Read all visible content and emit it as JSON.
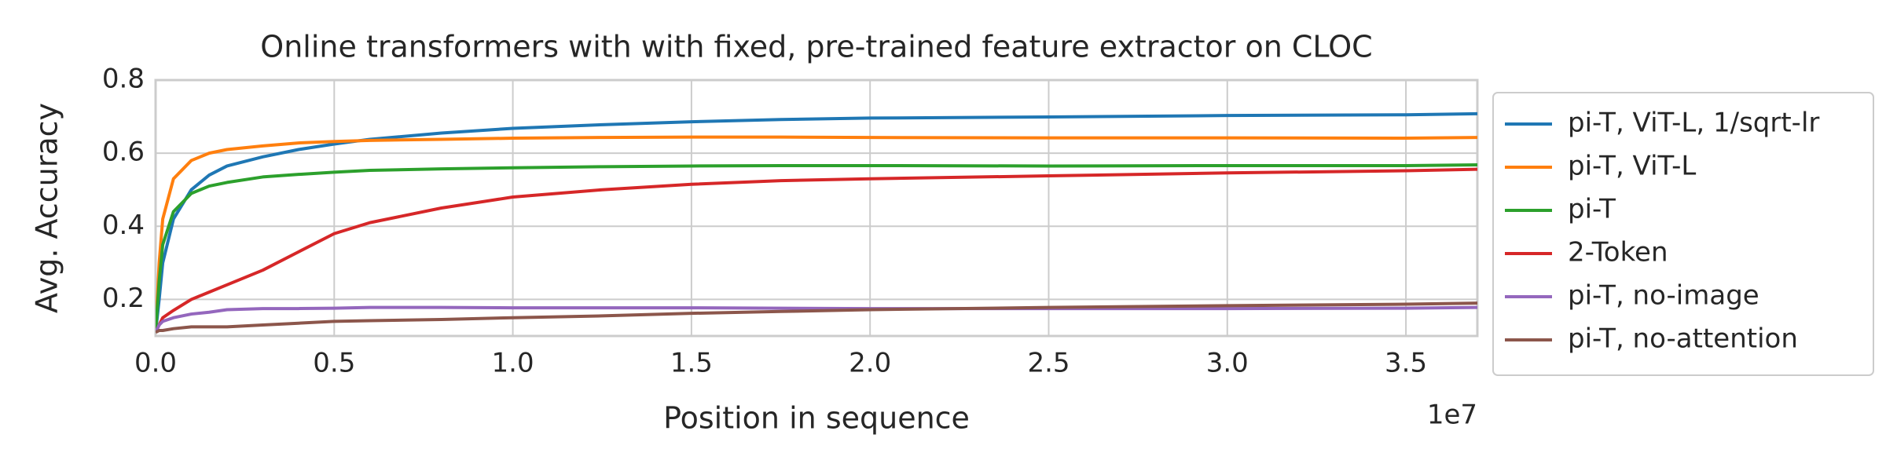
{
  "chart_data": {
    "type": "line",
    "title": "Online transformers with with fixed, pre-trained feature extractor on CLOC",
    "x_label": "Position in sequence",
    "y_label": "Avg. Accuracy",
    "x_offset_label": "1e7",
    "x": [
      0,
      100000,
      200000,
      500000,
      1000000,
      1500000,
      2000000,
      3000000,
      4000000,
      5000000,
      6000000,
      8000000,
      10000000,
      12500000,
      15000000,
      17500000,
      20000000,
      25000000,
      30000000,
      35000000,
      37000000
    ],
    "series": [
      {
        "name": "pi-T, ViT-L, 1/sqrt-lr",
        "color": "#1f77b4",
        "values": [
          0.11,
          0.2,
          0.3,
          0.42,
          0.5,
          0.54,
          0.565,
          0.59,
          0.61,
          0.625,
          0.638,
          0.655,
          0.668,
          0.678,
          0.686,
          0.692,
          0.696,
          0.699,
          0.703,
          0.705,
          0.708
        ]
      },
      {
        "name": "pi-T, ViT-L",
        "color": "#ff7f0e",
        "values": [
          0.11,
          0.3,
          0.42,
          0.53,
          0.58,
          0.6,
          0.61,
          0.62,
          0.628,
          0.632,
          0.635,
          0.638,
          0.641,
          0.643,
          0.644,
          0.644,
          0.643,
          0.642,
          0.642,
          0.641,
          0.643
        ]
      },
      {
        "name": "pi-T",
        "color": "#2ca02c",
        "values": [
          0.11,
          0.25,
          0.35,
          0.44,
          0.49,
          0.51,
          0.52,
          0.535,
          0.542,
          0.548,
          0.553,
          0.557,
          0.56,
          0.563,
          0.565,
          0.566,
          0.566,
          0.565,
          0.566,
          0.566,
          0.568
        ]
      },
      {
        "name": "2-Token",
        "color": "#d62728",
        "values": [
          0.11,
          0.13,
          0.15,
          0.17,
          0.2,
          0.22,
          0.24,
          0.28,
          0.33,
          0.38,
          0.41,
          0.45,
          0.48,
          0.5,
          0.515,
          0.525,
          0.53,
          0.538,
          0.546,
          0.552,
          0.556
        ]
      },
      {
        "name": "pi-T, no-image",
        "color": "#9467bd",
        "values": [
          0.11,
          0.13,
          0.14,
          0.15,
          0.16,
          0.165,
          0.172,
          0.175,
          0.175,
          0.176,
          0.178,
          0.178,
          0.177,
          0.177,
          0.177,
          0.176,
          0.175,
          0.175,
          0.175,
          0.176,
          0.178
        ]
      },
      {
        "name": "pi-T, no-attention",
        "color": "#8c564b",
        "values": [
          0.11,
          0.115,
          0.115,
          0.12,
          0.125,
          0.125,
          0.125,
          0.13,
          0.135,
          0.14,
          0.142,
          0.145,
          0.15,
          0.155,
          0.162,
          0.167,
          0.172,
          0.178,
          0.183,
          0.187,
          0.19
        ]
      }
    ],
    "xlim": [
      0,
      37000000
    ],
    "ylim": [
      0.1,
      0.8
    ],
    "xticks": [
      {
        "value": 0,
        "label": "0.0"
      },
      {
        "value": 5000000,
        "label": "0.5"
      },
      {
        "value": 10000000,
        "label": "1.0"
      },
      {
        "value": 15000000,
        "label": "1.5"
      },
      {
        "value": 20000000,
        "label": "2.0"
      },
      {
        "value": 25000000,
        "label": "2.5"
      },
      {
        "value": 30000000,
        "label": "3.0"
      },
      {
        "value": 35000000,
        "label": "3.5"
      }
    ],
    "yticks": [
      0.2,
      0.4,
      0.6,
      0.8
    ],
    "grid": true,
    "legend": "outside-right"
  }
}
